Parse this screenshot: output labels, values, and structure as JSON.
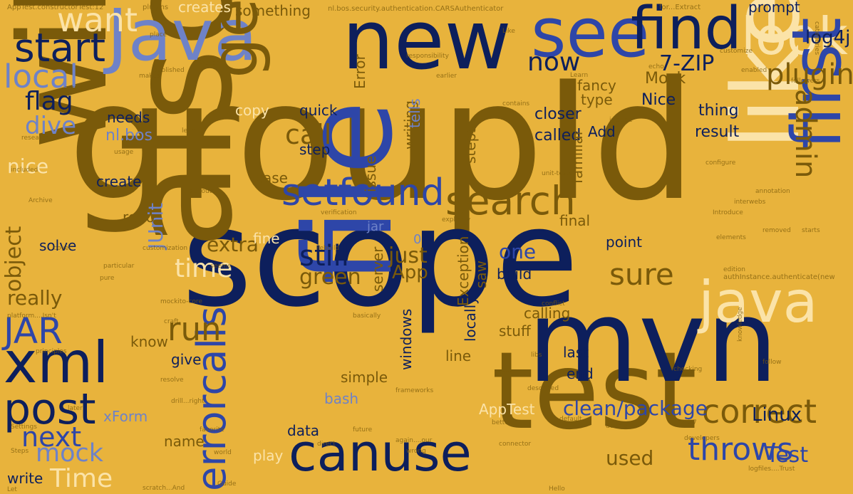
{
  "palette": {
    "background": "#e8b33c",
    "olive": "#7a5a0a",
    "navy": "#0d1f5c",
    "blue": "#2e46a8",
    "periwinkle": "#6e82c8",
    "cream": "#fbe3a8",
    "tan": "#c8922c"
  },
  "words": [
    {
      "text": "groupId",
      "color": "olive"
    },
    {
      "text": "scope",
      "color": "navy"
    },
    {
      "text": "also",
      "color": "olive"
    },
    {
      "text": "will",
      "color": "olive"
    },
    {
      "text": "file",
      "color": "blue"
    },
    {
      "text": "test",
      "color": "olive"
    },
    {
      "text": "mvn",
      "color": "navy"
    },
    {
      "text": "like",
      "color": "cream"
    },
    {
      "text": "new",
      "color": "navy"
    },
    {
      "text": "Java",
      "color": "periwinkle"
    },
    {
      "text": "see",
      "color": "blue"
    },
    {
      "text": "find",
      "color": "navy"
    },
    {
      "text": "look",
      "color": "cream"
    },
    {
      "text": "first",
      "color": "blue"
    },
    {
      "text": "canuse",
      "color": "navy"
    },
    {
      "text": "java",
      "color": "cream"
    },
    {
      "text": "get",
      "color": "olive"
    },
    {
      "text": "xml",
      "color": "navy"
    },
    {
      "text": "post",
      "color": "navy"
    },
    {
      "text": "setfound",
      "color": "blue"
    },
    {
      "text": "search",
      "color": "olive"
    },
    {
      "text": "errorcalls",
      "color": "blue"
    },
    {
      "text": "start",
      "color": "navy"
    },
    {
      "text": "want",
      "color": "cream"
    },
    {
      "text": "local",
      "color": "periwinkle"
    },
    {
      "text": "JAR",
      "color": "blue"
    },
    {
      "text": "correct",
      "color": "olive"
    },
    {
      "text": "throws",
      "color": "blue"
    },
    {
      "text": "still",
      "color": "navy"
    },
    {
      "text": "sure",
      "color": "olive"
    },
    {
      "text": "run",
      "color": "olive"
    },
    {
      "text": "next",
      "color": "blue"
    },
    {
      "text": "mock",
      "color": "periwinkle"
    },
    {
      "text": "Time",
      "color": "cream"
    },
    {
      "text": "call",
      "color": "olive"
    },
    {
      "text": "flag",
      "color": "navy"
    },
    {
      "text": "dive",
      "color": "periwinkle"
    },
    {
      "text": "plugin",
      "color": "olive"
    },
    {
      "text": "7-ZIP",
      "color": "navy"
    },
    {
      "text": "log4j",
      "color": "navy"
    },
    {
      "text": "now",
      "color": "navy"
    },
    {
      "text": "admin",
      "color": "olive"
    },
    {
      "text": "clean/package",
      "color": "blue"
    },
    {
      "text": "Linux",
      "color": "navy"
    },
    {
      "text": "Test",
      "color": "blue"
    },
    {
      "text": "time",
      "color": "cream"
    },
    {
      "text": "green",
      "color": "olive"
    },
    {
      "text": "just",
      "color": "olive"
    },
    {
      "text": "one",
      "color": "blue"
    },
    {
      "text": "App",
      "color": "olive"
    },
    {
      "text": "extra",
      "color": "olive"
    },
    {
      "text": "object",
      "color": "olive"
    },
    {
      "text": "JUnit",
      "color": "periwinkle"
    },
    {
      "text": "nice",
      "color": "cream"
    },
    {
      "text": "really",
      "color": "olive"
    },
    {
      "text": "used",
      "color": "olive"
    },
    {
      "text": "nl.bos",
      "color": "periwinkle"
    },
    {
      "text": "Mock",
      "color": "olive"
    },
    {
      "text": "Nice",
      "color": "navy"
    },
    {
      "text": "closer",
      "color": "navy"
    },
    {
      "text": "called",
      "color": "navy"
    },
    {
      "text": "thing",
      "color": "navy"
    },
    {
      "text": "result",
      "color": "navy"
    },
    {
      "text": "fancy",
      "color": "olive"
    },
    {
      "text": "type",
      "color": "olive"
    },
    {
      "text": "Add",
      "color": "navy"
    },
    {
      "text": "xForm",
      "color": "periwinkle"
    },
    {
      "text": "know",
      "color": "olive"
    },
    {
      "text": "give",
      "color": "navy"
    },
    {
      "text": "create",
      "color": "navy"
    },
    {
      "text": "needs",
      "color": "navy"
    },
    {
      "text": "copy",
      "color": "cream"
    },
    {
      "text": "quick",
      "color": "navy"
    },
    {
      "text": "step",
      "color": "navy"
    },
    {
      "text": "server",
      "color": "olive"
    },
    {
      "text": "writing",
      "color": "olive"
    },
    {
      "text": "tells",
      "color": "periwinkle"
    },
    {
      "text": "issue",
      "color": "olive"
    },
    {
      "text": "steps",
      "color": "olive"
    },
    {
      "text": "case",
      "color": "olive"
    },
    {
      "text": "fine",
      "color": "cream"
    },
    {
      "text": "repo",
      "color": "olive"
    },
    {
      "text": "solve",
      "color": "navy"
    },
    {
      "text": "final",
      "color": "olive"
    },
    {
      "text": "point",
      "color": "navy"
    },
    {
      "text": "build",
      "color": "navy"
    },
    {
      "text": "calling",
      "color": "olive"
    },
    {
      "text": "stuff",
      "color": "olive"
    },
    {
      "text": "last",
      "color": "navy"
    },
    {
      "text": "end",
      "color": "navy"
    },
    {
      "text": "line",
      "color": "olive"
    },
    {
      "text": "bash",
      "color": "periwinkle"
    },
    {
      "text": "simple",
      "color": "olive"
    },
    {
      "text": "data",
      "color": "navy"
    },
    {
      "text": "play",
      "color": "cream"
    },
    {
      "text": "name",
      "color": "olive"
    },
    {
      "text": "write",
      "color": "navy"
    },
    {
      "text": "AppTest",
      "color": "cream"
    },
    {
      "text": "windows",
      "color": "navy"
    },
    {
      "text": "locally",
      "color": "navy"
    },
    {
      "text": "Exception",
      "color": "olive"
    },
    {
      "text": "saw",
      "color": "olive"
    },
    {
      "text": "Error",
      "color": "olive"
    },
    {
      "text": "something",
      "color": "olive"
    },
    {
      "text": "creates",
      "color": "cream"
    },
    {
      "text": "prompt",
      "color": "navy"
    },
    {
      "text": "familiar",
      "color": "olive"
    },
    {
      "text": "jar",
      "color": "periwinkle"
    },
    {
      "text": "0",
      "color": "periwinkle"
    },
    {
      "text": "AppTest.constructorTest:12",
      "color": "olive"
    },
    {
      "text": "plugins",
      "color": "olive"
    },
    {
      "text": "nl.bos.security.authentication.CARSAuthenticator",
      "color": "olive"
    },
    {
      "text": "for...Extract",
      "color": "olive"
    },
    {
      "text": "authInstance.authenticate(new",
      "color": "olive"
    },
    {
      "text": "unit-tests",
      "color": "olive"
    },
    {
      "text": "configure",
      "color": "olive"
    },
    {
      "text": "research",
      "color": "olive"
    },
    {
      "text": "Archive",
      "color": "olive"
    },
    {
      "text": "customization",
      "color": "olive"
    },
    {
      "text": "platform....Isn't",
      "color": "olive"
    },
    {
      "text": "principles",
      "color": "olive"
    },
    {
      "text": "frameworks",
      "color": "olive"
    },
    {
      "text": "developers",
      "color": "olive"
    },
    {
      "text": "knowledge",
      "color": "olive"
    },
    {
      "text": "interwebs",
      "color": "olive"
    },
    {
      "text": "responsibility",
      "color": "olive"
    },
    {
      "text": "verification",
      "color": "olive"
    },
    {
      "text": "explicitly",
      "color": "olive"
    },
    {
      "text": "default",
      "color": "olive"
    },
    {
      "text": "described",
      "color": "olive"
    },
    {
      "text": "favorite",
      "color": "olive"
    },
    {
      "text": "future",
      "color": "olive"
    },
    {
      "text": "wrong",
      "color": "olive"
    },
    {
      "text": "world",
      "color": "olive"
    },
    {
      "text": "double",
      "color": "olive"
    },
    {
      "text": "checking",
      "color": "olive"
    },
    {
      "text": "logfiles....Trust",
      "color": "olive"
    },
    {
      "text": "2.0.7",
      "color": "olive"
    },
    {
      "text": "resolve",
      "color": "olive"
    },
    {
      "text": "Guide",
      "color": "olive"
    },
    {
      "text": "later",
      "color": "olive"
    },
    {
      "text": "craft",
      "color": "olive"
    },
    {
      "text": "libs",
      "color": "olive"
    },
    {
      "text": "open",
      "color": "olive"
    },
    {
      "text": "follow",
      "color": "olive"
    },
    {
      "text": "customize",
      "color": "olive"
    },
    {
      "text": "published",
      "color": "olive"
    },
    {
      "text": "makes",
      "color": "olive"
    },
    {
      "text": "current",
      "color": "olive"
    },
    {
      "text": "usage",
      "color": "olive"
    },
    {
      "text": "included",
      "color": "olive"
    },
    {
      "text": "direct",
      "color": "olive"
    },
    {
      "text": "better",
      "color": "olive"
    },
    {
      "text": "conflict",
      "color": "olive"
    },
    {
      "text": "earlier",
      "color": "olive"
    },
    {
      "text": "contains",
      "color": "olive"
    },
    {
      "text": "enabled",
      "color": "olive"
    },
    {
      "text": "categories",
      "color": "olive"
    },
    {
      "text": "followers",
      "color": "olive"
    },
    {
      "text": "Steps",
      "color": "olive"
    },
    {
      "text": "Settings",
      "color": "olive"
    },
    {
      "text": "Hello",
      "color": "olive"
    },
    {
      "text": "Let",
      "color": "olive"
    },
    {
      "text": "scratch...And",
      "color": "olive"
    },
    {
      "text": "again....our",
      "color": "olive"
    },
    {
      "text": "drill...right",
      "color": "olive"
    },
    {
      "text": "rebuild",
      "color": "olive"
    },
    {
      "text": "basically",
      "color": "olive"
    },
    {
      "text": "seems",
      "color": "olive"
    },
    {
      "text": "pure",
      "color": "olive"
    },
    {
      "text": "particular",
      "color": "olive"
    },
    {
      "text": "removed",
      "color": "olive"
    },
    {
      "text": "starts",
      "color": "olive"
    },
    {
      "text": "edition",
      "color": "olive"
    },
    {
      "text": "elements",
      "color": "olive"
    },
    {
      "text": "annotation",
      "color": "olive"
    },
    {
      "text": "include",
      "color": "olive"
    },
    {
      "text": "Watch",
      "color": "olive"
    },
    {
      "text": "Like",
      "color": "olive"
    },
    {
      "text": "Learn",
      "color": "olive"
    },
    {
      "text": "sit-route",
      "color": "olive"
    },
    {
      "text": "mockito-core",
      "color": "olive"
    },
    {
      "text": "place",
      "color": "olive"
    },
    {
      "text": "lead",
      "color": "olive"
    },
    {
      "text": "echo",
      "color": "olive"
    },
    {
      "text": "Introduce",
      "color": "olive"
    },
    {
      "text": "connector",
      "color": "olive"
    },
    {
      "text": "cover",
      "color": "olive"
    }
  ]
}
